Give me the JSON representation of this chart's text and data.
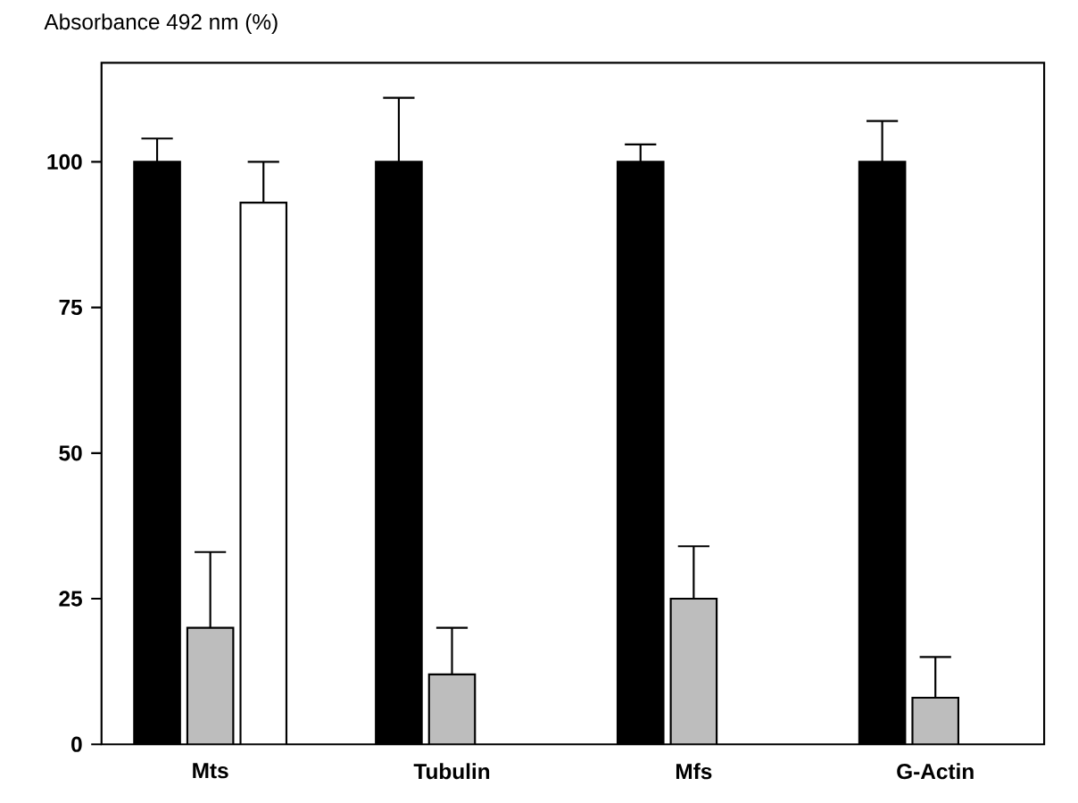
{
  "chart_data": {
    "type": "bar",
    "ylabel": "Absorbance 492 nm (%)",
    "categories": [
      "Mts",
      "Tubulin",
      "Mfs",
      "G-Actin"
    ],
    "series": [
      {
        "color": "#000000",
        "values": [
          100,
          100,
          100,
          100
        ],
        "errors": [
          [
            100,
            104
          ],
          [
            100,
            111
          ],
          [
            100,
            103
          ],
          [
            100,
            107
          ]
        ]
      },
      {
        "color": "#bdbdbd",
        "values": [
          20,
          12,
          25,
          8
        ],
        "errors": [
          [
            20,
            33
          ],
          [
            12,
            20
          ],
          [
            25,
            34
          ],
          [
            8,
            15
          ]
        ]
      },
      {
        "color": "#ffffff",
        "values": [
          93,
          null,
          null,
          null
        ],
        "errors": [
          [
            93,
            100
          ],
          null,
          null,
          null
        ]
      }
    ],
    "ylim": [
      0,
      117
    ],
    "yticks": [
      0,
      25,
      50,
      75,
      100
    ],
    "grid": false
  }
}
